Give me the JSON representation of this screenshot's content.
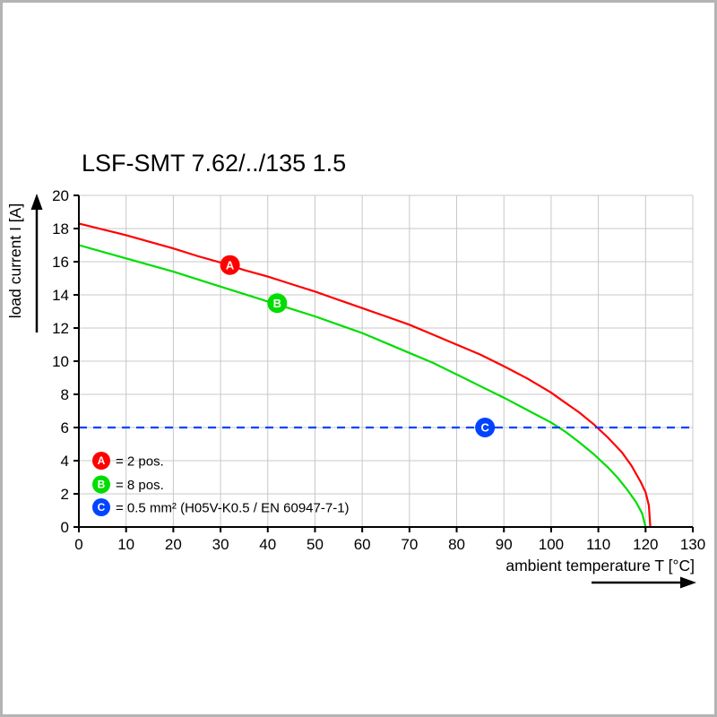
{
  "page": {
    "background": "#ffffff",
    "frame_color": "#b4b4b4",
    "grid_color": "#c8c8c8",
    "axis_color": "#000000"
  },
  "chart_data": {
    "type": "line",
    "title": "LSF-SMT 7.62/../135 1.5",
    "xlabel": "ambient temperature T [°C]",
    "ylabel": "load current I [A]",
    "xlim": [
      0,
      130
    ],
    "ylim": [
      0,
      20
    ],
    "xticks": [
      0,
      10,
      20,
      30,
      40,
      50,
      60,
      70,
      80,
      90,
      100,
      110,
      120,
      130
    ],
    "yticks": [
      0,
      2,
      4,
      6,
      8,
      10,
      12,
      14,
      16,
      18,
      20
    ],
    "grid": true,
    "legend_position": "lower-left-inside",
    "series": [
      {
        "id": "A",
        "legend_label": "= 2 pos.",
        "color": "#ff0000",
        "line_style": "solid",
        "marker": {
          "label": "A",
          "x": 32,
          "y": 15.8
        },
        "points": [
          [
            0,
            18.3
          ],
          [
            5,
            17.95
          ],
          [
            10,
            17.6
          ],
          [
            15,
            17.2
          ],
          [
            20,
            16.8
          ],
          [
            25,
            16.35
          ],
          [
            30,
            15.95
          ],
          [
            35,
            15.5
          ],
          [
            40,
            15.1
          ],
          [
            45,
            14.65
          ],
          [
            50,
            14.2
          ],
          [
            55,
            13.7
          ],
          [
            60,
            13.2
          ],
          [
            65,
            12.7
          ],
          [
            70,
            12.2
          ],
          [
            75,
            11.6
          ],
          [
            80,
            11.0
          ],
          [
            85,
            10.4
          ],
          [
            90,
            9.7
          ],
          [
            95,
            8.95
          ],
          [
            100,
            8.1
          ],
          [
            103,
            7.5
          ],
          [
            106,
            6.9
          ],
          [
            109,
            6.2
          ],
          [
            112,
            5.4
          ],
          [
            115,
            4.5
          ],
          [
            117,
            3.7
          ],
          [
            119,
            2.7
          ],
          [
            120,
            2.1
          ],
          [
            120.7,
            1.3
          ],
          [
            121,
            0
          ]
        ]
      },
      {
        "id": "B",
        "legend_label": "= 8 pos.",
        "color": "#00dd00",
        "line_style": "solid",
        "marker": {
          "label": "B",
          "x": 42,
          "y": 13.5
        },
        "points": [
          [
            0,
            17.0
          ],
          [
            5,
            16.6
          ],
          [
            10,
            16.2
          ],
          [
            15,
            15.8
          ],
          [
            20,
            15.4
          ],
          [
            25,
            14.95
          ],
          [
            30,
            14.5
          ],
          [
            35,
            14.05
          ],
          [
            40,
            13.6
          ],
          [
            45,
            13.15
          ],
          [
            50,
            12.7
          ],
          [
            55,
            12.2
          ],
          [
            60,
            11.7
          ],
          [
            65,
            11.1
          ],
          [
            70,
            10.5
          ],
          [
            75,
            9.9
          ],
          [
            80,
            9.2
          ],
          [
            85,
            8.5
          ],
          [
            90,
            7.8
          ],
          [
            95,
            7.05
          ],
          [
            100,
            6.3
          ],
          [
            103,
            5.75
          ],
          [
            106,
            5.1
          ],
          [
            109,
            4.4
          ],
          [
            112,
            3.6
          ],
          [
            114,
            3.0
          ],
          [
            116,
            2.3
          ],
          [
            118,
            1.5
          ],
          [
            119.3,
            0.8
          ],
          [
            120,
            0
          ]
        ]
      },
      {
        "id": "C",
        "legend_label": "= 0.5 mm² (H05V-K0.5 / EN 60947-7-1)",
        "color": "#0044ff",
        "line_style": "dashed",
        "marker": {
          "label": "C",
          "x": 86,
          "y": 6
        },
        "points": [
          [
            0,
            6
          ],
          [
            130,
            6
          ]
        ]
      }
    ]
  }
}
